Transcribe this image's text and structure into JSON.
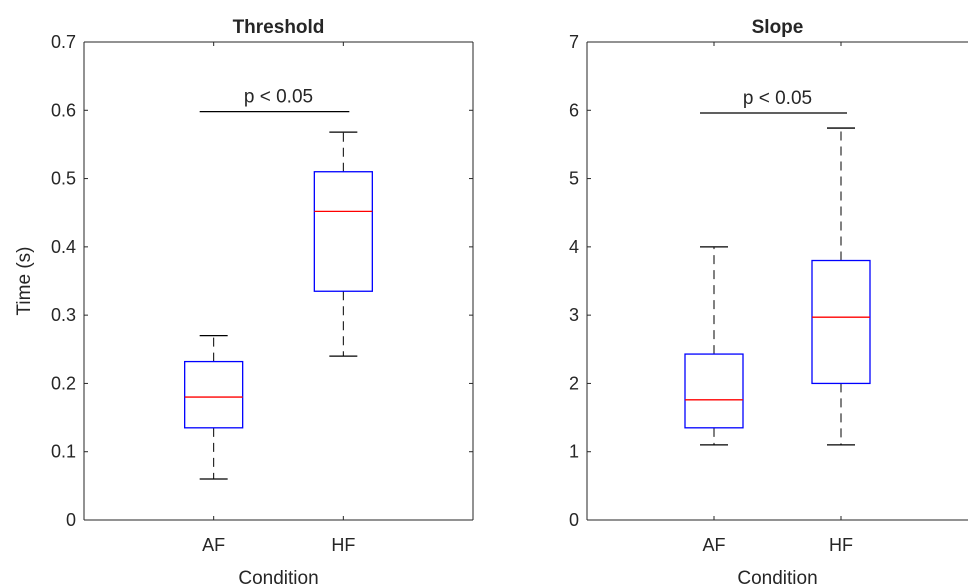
{
  "chart_data": [
    {
      "type": "box",
      "title": "Threshold",
      "xlabel": "Condition",
      "ylabel": "Time (s)",
      "ylim": [
        0,
        0.7
      ],
      "yticks": [
        0,
        0.1,
        0.2,
        0.3,
        0.4,
        0.5,
        0.6,
        0.7
      ],
      "ytick_labels": [
        "0",
        "0.1",
        "0.2",
        "0.3",
        "0.4",
        "0.5",
        "0.6",
        "0.7"
      ],
      "categories": [
        "AF",
        "HF"
      ],
      "boxes": [
        {
          "category": "AF",
          "whisker_low": 0.06,
          "q1": 0.135,
          "median": 0.18,
          "q3": 0.232,
          "whisker_high": 0.27
        },
        {
          "category": "HF",
          "whisker_low": 0.24,
          "q1": 0.335,
          "median": 0.452,
          "q3": 0.51,
          "whisker_high": 0.568
        }
      ],
      "annotation": {
        "text": "p < 0.05",
        "y": 0.598
      },
      "grid": false
    },
    {
      "type": "box",
      "title": "Slope",
      "xlabel": "Condition",
      "ylabel": "",
      "ylim": [
        0,
        7
      ],
      "yticks": [
        0,
        1,
        2,
        3,
        4,
        5,
        6,
        7
      ],
      "ytick_labels": [
        "0",
        "1",
        "2",
        "3",
        "4",
        "5",
        "6",
        "7"
      ],
      "categories": [
        "AF",
        "HF"
      ],
      "boxes": [
        {
          "category": "AF",
          "whisker_low": 1.1,
          "q1": 1.35,
          "median": 1.76,
          "q3": 2.43,
          "whisker_high": 4.0
        },
        {
          "category": "HF",
          "whisker_low": 1.1,
          "q1": 2.0,
          "median": 2.97,
          "q3": 3.8,
          "whisker_high": 5.74
        }
      ],
      "annotation": {
        "text": "p < 0.05",
        "y": 5.96
      },
      "grid": false
    }
  ],
  "colors": {
    "box": "#0000ff",
    "median": "#ff0000",
    "whisker": "#000000",
    "axis": "#262626"
  }
}
